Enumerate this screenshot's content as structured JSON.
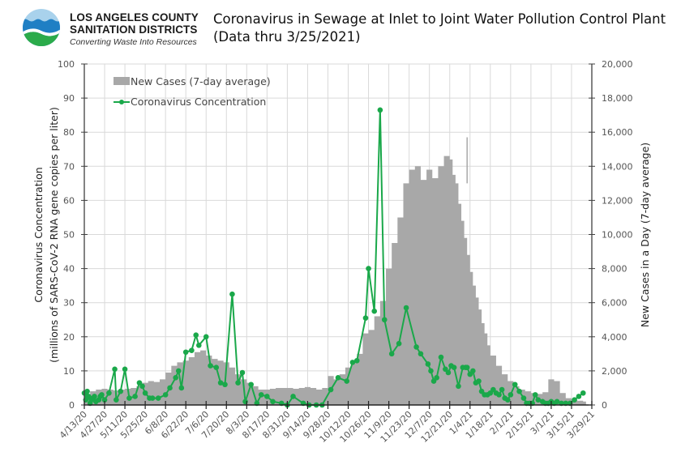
{
  "header": {
    "org_name_line1": "LOS ANGELES COUNTY",
    "org_name_line2": "SANITATION DISTRICTS",
    "tagline": "Converting Waste Into Resources",
    "title_line1": "Coronavirus in Sewage at Inlet to Joint Water Pollution Control Plant",
    "title_line2": "(Data thru 3/25/2021)"
  },
  "colors": {
    "cases_fill": "#a8a8a8",
    "concentration_line": "#1aa84a",
    "grid": "#d9d9d9",
    "axis": "#404040",
    "logo_sky": "#a9d2ec",
    "logo_water": "#1f7fc4",
    "logo_land": "#2bab4a"
  },
  "chart_data": {
    "type": "line",
    "title": "Coronavirus in Sewage at Inlet to Joint Water Pollution Control Plant (Data thru 3/25/2021)",
    "xlabel": "",
    "ylabel": "Coronavirus Concentration (millions of SARS-CoV-2 RNA gene copies per liter)",
    "ylabel_line1": "Coronavirus Concentration",
    "ylabel_line2": "(millions of SARS-CoV-2 RNA gene copies per liter)",
    "y2label": "New Cases in a Day (7-day average)",
    "ylim": [
      0,
      100
    ],
    "y2lim": [
      0,
      20000
    ],
    "xlim_days_from_start": [
      0,
      350
    ],
    "x_start_date": "4/13/20",
    "grid": true,
    "legend_position": "top-left",
    "yticks": [
      "0",
      "10",
      "20",
      "30",
      "40",
      "50",
      "60",
      "70",
      "80",
      "90",
      "100"
    ],
    "y2ticks": [
      "0",
      "2,000",
      "4,000",
      "6,000",
      "8,000",
      "10,000",
      "12,000",
      "14,000",
      "16,000",
      "18,000",
      "20,000"
    ],
    "xticks": [
      "4/13/20",
      "4/27/20",
      "5/11/20",
      "5/25/20",
      "6/8/20",
      "6/22/20",
      "7/6/20",
      "7/20/20",
      "8/3/20",
      "8/17/20",
      "8/31/20",
      "9/14/20",
      "9/28/20",
      "10/12/20",
      "10/26/20",
      "11/9/20",
      "11/23/20",
      "12/7/20",
      "12/21/20",
      "1/4/21",
      "1/18/21",
      "2/1/21",
      "2/15/21",
      "3/1/21",
      "3/15/21",
      "3/29/21"
    ],
    "series": [
      {
        "name": "New Cases (7-day average)",
        "type": "area",
        "axis": "right",
        "x_days": [
          0,
          4,
          8,
          12,
          16,
          20,
          24,
          28,
          32,
          36,
          40,
          44,
          48,
          52,
          56,
          60,
          64,
          68,
          72,
          76,
          80,
          84,
          88,
          92,
          96,
          100,
          104,
          108,
          112,
          116,
          120,
          124,
          128,
          132,
          136,
          140,
          144,
          148,
          152,
          156,
          160,
          164,
          168,
          172,
          176,
          180,
          184,
          188,
          192,
          196,
          200,
          204,
          208,
          212,
          216,
          220,
          224,
          228,
          232,
          236,
          240,
          244,
          248,
          252,
          254,
          256,
          258,
          260,
          262,
          264,
          266,
          268,
          270,
          272,
          274,
          276,
          278,
          280,
          284,
          288,
          292,
          296,
          300,
          304,
          308,
          312,
          316,
          320,
          324,
          328,
          332,
          336,
          340,
          344,
          346
        ],
        "values": [
          500,
          800,
          900,
          950,
          900,
          850,
          900,
          950,
          1000,
          1100,
          1300,
          1400,
          1350,
          1500,
          1900,
          2300,
          2500,
          2600,
          2800,
          3100,
          3200,
          2900,
          2700,
          2600,
          2500,
          2200,
          1800,
          1500,
          1300,
          1100,
          900,
          900,
          950,
          1000,
          1000,
          1000,
          950,
          1000,
          1050,
          1000,
          900,
          1000,
          1700,
          1500,
          1800,
          2200,
          2600,
          3000,
          4200,
          4400,
          5200,
          6100,
          8000,
          9500,
          11000,
          13000,
          13800,
          14000,
          13200,
          13800,
          13300,
          14000,
          14600,
          14400,
          13500,
          13000,
          11800,
          10800,
          9800,
          8800,
          7800,
          7000,
          6300,
          5600,
          4800,
          4200,
          3500,
          2900,
          2300,
          1800,
          1400,
          1100,
          900,
          800,
          700,
          650,
          750,
          1500,
          1400,
          700,
          400,
          300,
          250,
          200,
          200
        ],
        "notes": "Gray area approximated; single-day spike to ~15,700 near 1/2/21"
      },
      {
        "name": "Coronavirus Concentration",
        "type": "line",
        "axis": "left",
        "x_days": [
          0,
          1,
          2,
          3,
          4,
          5,
          6,
          7,
          8,
          10,
          11,
          12,
          14,
          17,
          21,
          22,
          25,
          28,
          31,
          35,
          38,
          40,
          42,
          45,
          47,
          51,
          56,
          59,
          63,
          65,
          67,
          70,
          74,
          77,
          79,
          84,
          87,
          91,
          94,
          97,
          102,
          106,
          109,
          111,
          115,
          119,
          122,
          126,
          130,
          136,
          140,
          144,
          151,
          155,
          160,
          164,
          170,
          175,
          181,
          185,
          188,
          194,
          196,
          200,
          204,
          207,
          212,
          217,
          222,
          229,
          232,
          237,
          239,
          241,
          243,
          246,
          249,
          251,
          253,
          255,
          258,
          261,
          263,
          264,
          266,
          268,
          270,
          272,
          274,
          276,
          278,
          280,
          282,
          284,
          286,
          288,
          290,
          292,
          294,
          297,
          300,
          303,
          305,
          307,
          309,
          311,
          313,
          316,
          318,
          320,
          322,
          324,
          326,
          329,
          332,
          335,
          338,
          341,
          344
        ],
        "values": [
          3.5,
          1.5,
          4,
          2.5,
          0.5,
          1.5,
          2,
          2.5,
          1,
          1.5,
          2.5,
          3,
          1.5,
          3.5,
          10.5,
          1.5,
          4,
          10.5,
          2,
          2.5,
          6.5,
          5.5,
          3.5,
          2,
          2,
          2,
          3,
          5,
          8,
          10,
          5,
          15.5,
          16,
          20.5,
          17.5,
          20,
          11.5,
          11,
          6.5,
          6,
          32.5,
          6.5,
          9.5,
          1,
          6,
          0.5,
          3,
          2.5,
          1,
          0.5,
          0,
          2.5,
          0.5,
          0,
          0,
          0,
          4.5,
          8,
          7,
          12.5,
          13,
          25.5,
          40,
          27.5,
          86.5,
          25,
          15,
          18,
          28.5,
          17,
          15,
          12,
          10,
          7,
          8,
          14,
          10.5,
          9.5,
          11.5,
          11,
          5.5,
          11,
          11,
          11,
          9,
          10,
          6.5,
          7,
          4,
          3,
          3,
          3.5,
          4.5,
          3.5,
          3,
          4.5,
          2,
          1.5,
          3,
          6,
          4,
          2,
          0.5,
          0.5,
          0.5,
          3,
          1.5,
          1,
          0.5,
          0.5,
          1,
          0.5,
          1,
          0.5,
          0.5,
          0.5,
          1.5,
          2.5,
          3.5
        ]
      }
    ]
  }
}
